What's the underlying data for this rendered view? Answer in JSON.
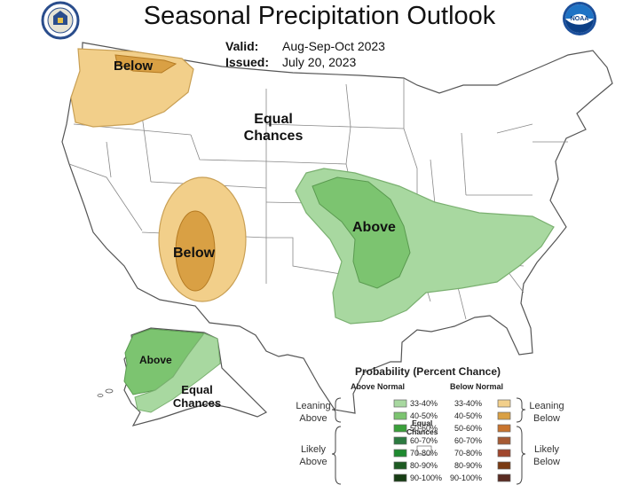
{
  "header": {
    "title": "Seasonal Precipitation Outlook",
    "valid_label": "Valid:",
    "valid_value": "Aug-Sep-Oct 2023",
    "issued_label": "Issued:",
    "issued_value": "July 20, 2023",
    "left_logo": "commerce-department-seal",
    "right_logo": "noaa-logo"
  },
  "map": {
    "labels": {
      "below_northwest": "Below",
      "equal_conus_line1": "Equal",
      "equal_conus_line2": "Chances",
      "below_southwest": "Below",
      "above_central": "Above",
      "above_alaska": "Above",
      "equal_alaska_line1": "Equal",
      "equal_alaska_line2": "Chances"
    }
  },
  "legend": {
    "title": "Probability (Percent Chance)",
    "above_header": "Above Normal",
    "below_header": "Below Normal",
    "leaning_above": [
      "Leaning",
      "Above"
    ],
    "likely_above": [
      "Likely",
      "Above"
    ],
    "leaning_below": [
      "Leaning",
      "Below"
    ],
    "likely_below": [
      "Likely",
      "Below"
    ],
    "equal_chances": [
      "Equal",
      "Chances"
    ],
    "ranges": [
      "33-40%",
      "40-50%",
      "50-60%",
      "60-70%",
      "70-80%",
      "80-90%",
      "90-100%"
    ],
    "above_colors": [
      "#a8d8a0",
      "#7cc470",
      "#3aa03a",
      "#2c7a40",
      "#1e8a30",
      "#1d5a22",
      "#173d14"
    ],
    "below_colors": [
      "#f2cf8a",
      "#d9a044",
      "#c8742e",
      "#a65a34",
      "#a0462c",
      "#7a3a12",
      "#5a2c22"
    ],
    "equal_color": "#ffffff"
  }
}
